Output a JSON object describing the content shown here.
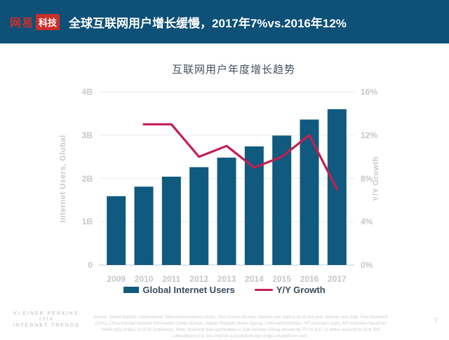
{
  "header": {
    "logo_brand": "网易",
    "logo_sub": "科技",
    "title": "全球互联网用户增长缓慢，2017年7%vs.2016年12%"
  },
  "chart_data": {
    "type": "bar",
    "title": "互联网用户年度增长趋势",
    "categories": [
      "2009",
      "2010",
      "2011",
      "2012",
      "2013",
      "2014",
      "2015",
      "2016",
      "2017"
    ],
    "series": [
      {
        "name": "Global Internet Users",
        "type": "bar",
        "axis": "left",
        "unit": "B",
        "values": [
          1.59,
          1.81,
          2.04,
          2.26,
          2.48,
          2.74,
          2.99,
          3.36,
          3.6
        ],
        "color": "#0F5A7E"
      },
      {
        "name": "Y/Y Growth",
        "type": "line",
        "axis": "right",
        "unit": "%",
        "values": [
          null,
          13,
          13,
          10,
          11,
          9,
          10,
          12,
          7
        ],
        "color": "#C41E51"
      }
    ],
    "left_axis": {
      "label": "Internet Users, Global",
      "ticks": [
        "0",
        "1B",
        "2B",
        "3B",
        "4B"
      ],
      "min": 0,
      "max": 4
    },
    "right_axis": {
      "label": "Y/Y Growth",
      "ticks": [
        "0%",
        "4%",
        "8%",
        "12%",
        "16%"
      ],
      "min": 0,
      "max": 16
    },
    "grid": true,
    "legend_position": "bottom"
  },
  "footer": {
    "brand_lines": [
      "KLEINER PERKINS",
      "2018",
      "INTERNET TRENDS"
    ],
    "source": "Source: United Nations / International Telecommunications Union, USA Census Bureau. Internet user data is as of mid-year. Internet user data: Pew Research (USA), China Internet Network Information Center (China), Islamic Republic News Agency / InternetWorldStats / KP estimates (Iran), KP estimates based on IAMAI data (India), & APJII (Indonesia). Note: Historical data (particularly in Sub-Saharan Africa) revised by ITU in 2017 to better account for dual SIM subscriptions (i.e. two Internet subscriptions per single smartphone user).",
    "page_number": "7"
  },
  "colors": {
    "header_bg": "#0D5078",
    "logo_red": "#C9302A",
    "bar_blue": "#0F5A7E",
    "line_crimson": "#C41E51",
    "gridline": "#E7E9EB",
    "axis_text": "#C3C7CB"
  }
}
